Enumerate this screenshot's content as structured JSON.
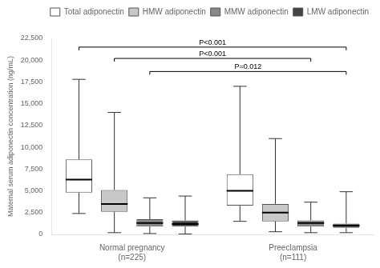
{
  "chart_data": {
    "type": "box",
    "ylabel": "Maternal serum adiponectin concentration (ng/mL)",
    "categories": [
      "Normal pregnancy\n(n=225)",
      "Preeclampsia\n(n=111)"
    ],
    "series": [
      {
        "name": "Total adiponectin",
        "color": "#FFFFFF",
        "values": [
          {
            "med": 6300,
            "q1": 4800,
            "q3": 8600,
            "whislo": 2400,
            "whishi": 17800
          },
          {
            "med": 5000,
            "q1": 3300,
            "q3": 6900,
            "whislo": 1500,
            "whishi": 17000
          }
        ]
      },
      {
        "name": "HMW adiponectin",
        "color": "#C8C8C8",
        "values": [
          {
            "med": 3500,
            "q1": 2600,
            "q3": 5100,
            "whislo": 200,
            "whishi": 14000
          },
          {
            "med": 2500,
            "q1": 1500,
            "q3": 3500,
            "whislo": 300,
            "whishi": 11000
          }
        ]
      },
      {
        "name": "MMW adiponectin",
        "color": "#888888",
        "values": [
          {
            "med": 1300,
            "q1": 900,
            "q3": 1750,
            "whislo": 100,
            "whishi": 4200
          },
          {
            "med": 1300,
            "q1": 900,
            "q3": 1600,
            "whislo": 200,
            "whishi": 3700
          }
        ]
      },
      {
        "name": "LMW adiponectin",
        "color": "#444444",
        "values": [
          {
            "med": 1200,
            "q1": 900,
            "q3": 1600,
            "whislo": 50,
            "whishi": 4400
          },
          {
            "med": 1000,
            "q1": 750,
            "q3": 1250,
            "whislo": 200,
            "whishi": 4900
          }
        ]
      }
    ],
    "ylim": [
      0,
      22500
    ],
    "yticks": [
      0,
      {
        "value": 2500,
        "label": "2,500"
      },
      {
        "value": 5000,
        "label": "5,000"
      },
      {
        "value": 7500,
        "label": "7,500"
      },
      {
        "value": 10000,
        "label": "10,000"
      },
      {
        "value": 12500,
        "label": "12,500"
      },
      {
        "value": 15000,
        "label": "15,000"
      },
      {
        "value": 17500,
        "label": "17,500"
      },
      {
        "value": 20000,
        "label": "20,000"
      },
      {
        "value": 22500,
        "label": "22,500"
      }
    ],
    "annotations": [
      {
        "text": "P<0.001",
        "y": 21500,
        "from": {
          "category": "Normal pregnancy\n(n=225)",
          "series": "Total adiponectin"
        },
        "to": {
          "category": "Preeclampsia\n(n=111)",
          "series": "LMW adiponectin"
        }
      },
      {
        "text": "P<0.001",
        "y": 20200,
        "from": {
          "category": "Normal pregnancy\n(n=225)",
          "series": "HMW adiponectin"
        },
        "to": {
          "category": "Preeclampsia\n(n=111)",
          "series": "MMW adiponectin"
        }
      },
      {
        "text": "P=0.012",
        "y": 18700,
        "from": {
          "category": "Normal pregnancy\n(n=225)",
          "series": "MMW adiponectin"
        },
        "to": {
          "category": "Preeclampsia\n(n=111)",
          "series": "LMW adiponectin"
        }
      }
    ],
    "legend": "upper right",
    "grid": false
  }
}
